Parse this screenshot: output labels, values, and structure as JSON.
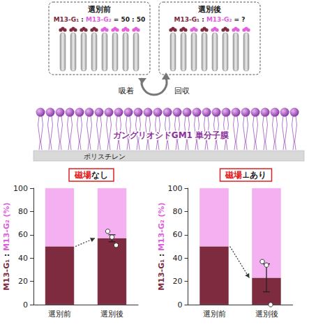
{
  "diagram": {
    "before": {
      "title": "選別前",
      "ratio": "M13-G₁ : M13-G₂ = 50 : 50"
    },
    "after": {
      "title": "選別後",
      "ratio": "M13-G₁ : M13-G₂ = ?"
    },
    "arrows": {
      "left": "吸着",
      "right": "回収"
    },
    "monolayer": "ガングリオシドGM1 単分子膜",
    "substrate": "ポリスチレン"
  },
  "chart_data": [
    {
      "type": "bar",
      "title": "磁場なし",
      "y_label": "M13-G₁ : M13-G₂ (%)",
      "categories": [
        "選別前",
        "選別後"
      ],
      "stacked": true,
      "grid": false,
      "ylim": [
        0,
        100
      ],
      "yticks": [
        0,
        20,
        40,
        60,
        80,
        100
      ],
      "series": [
        {
          "color": "#7e2b3f",
          "values": [
            50,
            57
          ],
          "error": [
            null,
            3
          ],
          "points": [
            [],
            [
              63,
              58,
              51
            ]
          ]
        },
        {
          "color": "#f4b0f0",
          "values": [
            50,
            43
          ]
        }
      ]
    },
    {
      "type": "bar",
      "title": "磁場⊥あり",
      "y_label": "M13-G₁ : M13-G₂ (%)",
      "categories": [
        "選別前",
        "選別後"
      ],
      "stacked": true,
      "grid": false,
      "ylim": [
        0,
        100
      ],
      "yticks": [
        0,
        20,
        40,
        60,
        80,
        100
      ],
      "series": [
        {
          "color": "#7e2b3f",
          "values": [
            50,
            23
          ],
          "error": [
            null,
            12
          ],
          "points": [
            [],
            [
              37,
              34,
              0
            ]
          ]
        },
        {
          "color": "#f4b0f0",
          "values": [
            50,
            77
          ]
        }
      ]
    }
  ]
}
